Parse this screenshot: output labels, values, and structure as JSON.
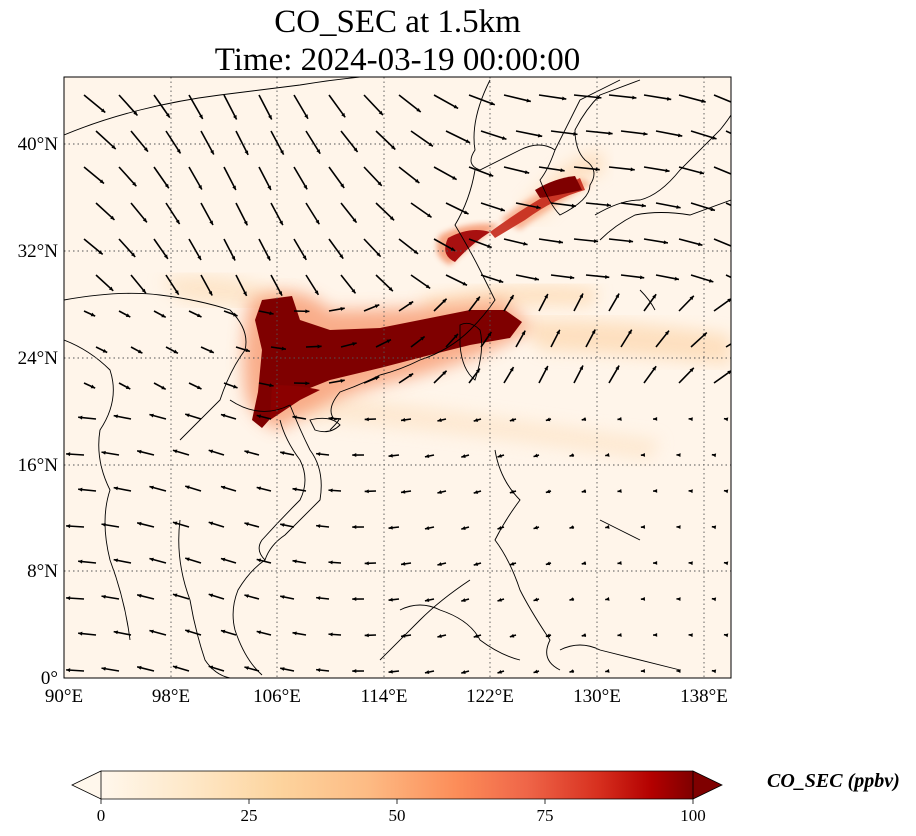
{
  "title": {
    "line1": "CO_SEC at 1.5km",
    "line2": "Time: 2024-03-19 00:00:00"
  },
  "map": {
    "projection": "PlateCarree",
    "lon_range": [
      90,
      140
    ],
    "lat_range": [
      0,
      44
    ],
    "gridlines": "dotted",
    "lon_ticks": [
      "90°E",
      "98°E",
      "106°E",
      "114°E",
      "122°E",
      "130°E",
      "138°E"
    ],
    "lat_ticks": [
      "0°",
      "8°N",
      "16°N",
      "24°N",
      "32°N",
      "40°N"
    ],
    "background_color": "#fff5ea",
    "plume_color": "#7f0000",
    "wind_vectors": "black quiver arrows"
  },
  "colorbar": {
    "label": "CO_SEC (ppbv)",
    "ticks": [
      "0",
      "25",
      "50",
      "75",
      "100"
    ],
    "range": [
      0,
      100
    ],
    "colormap": "OrRd",
    "extend": "both"
  }
}
